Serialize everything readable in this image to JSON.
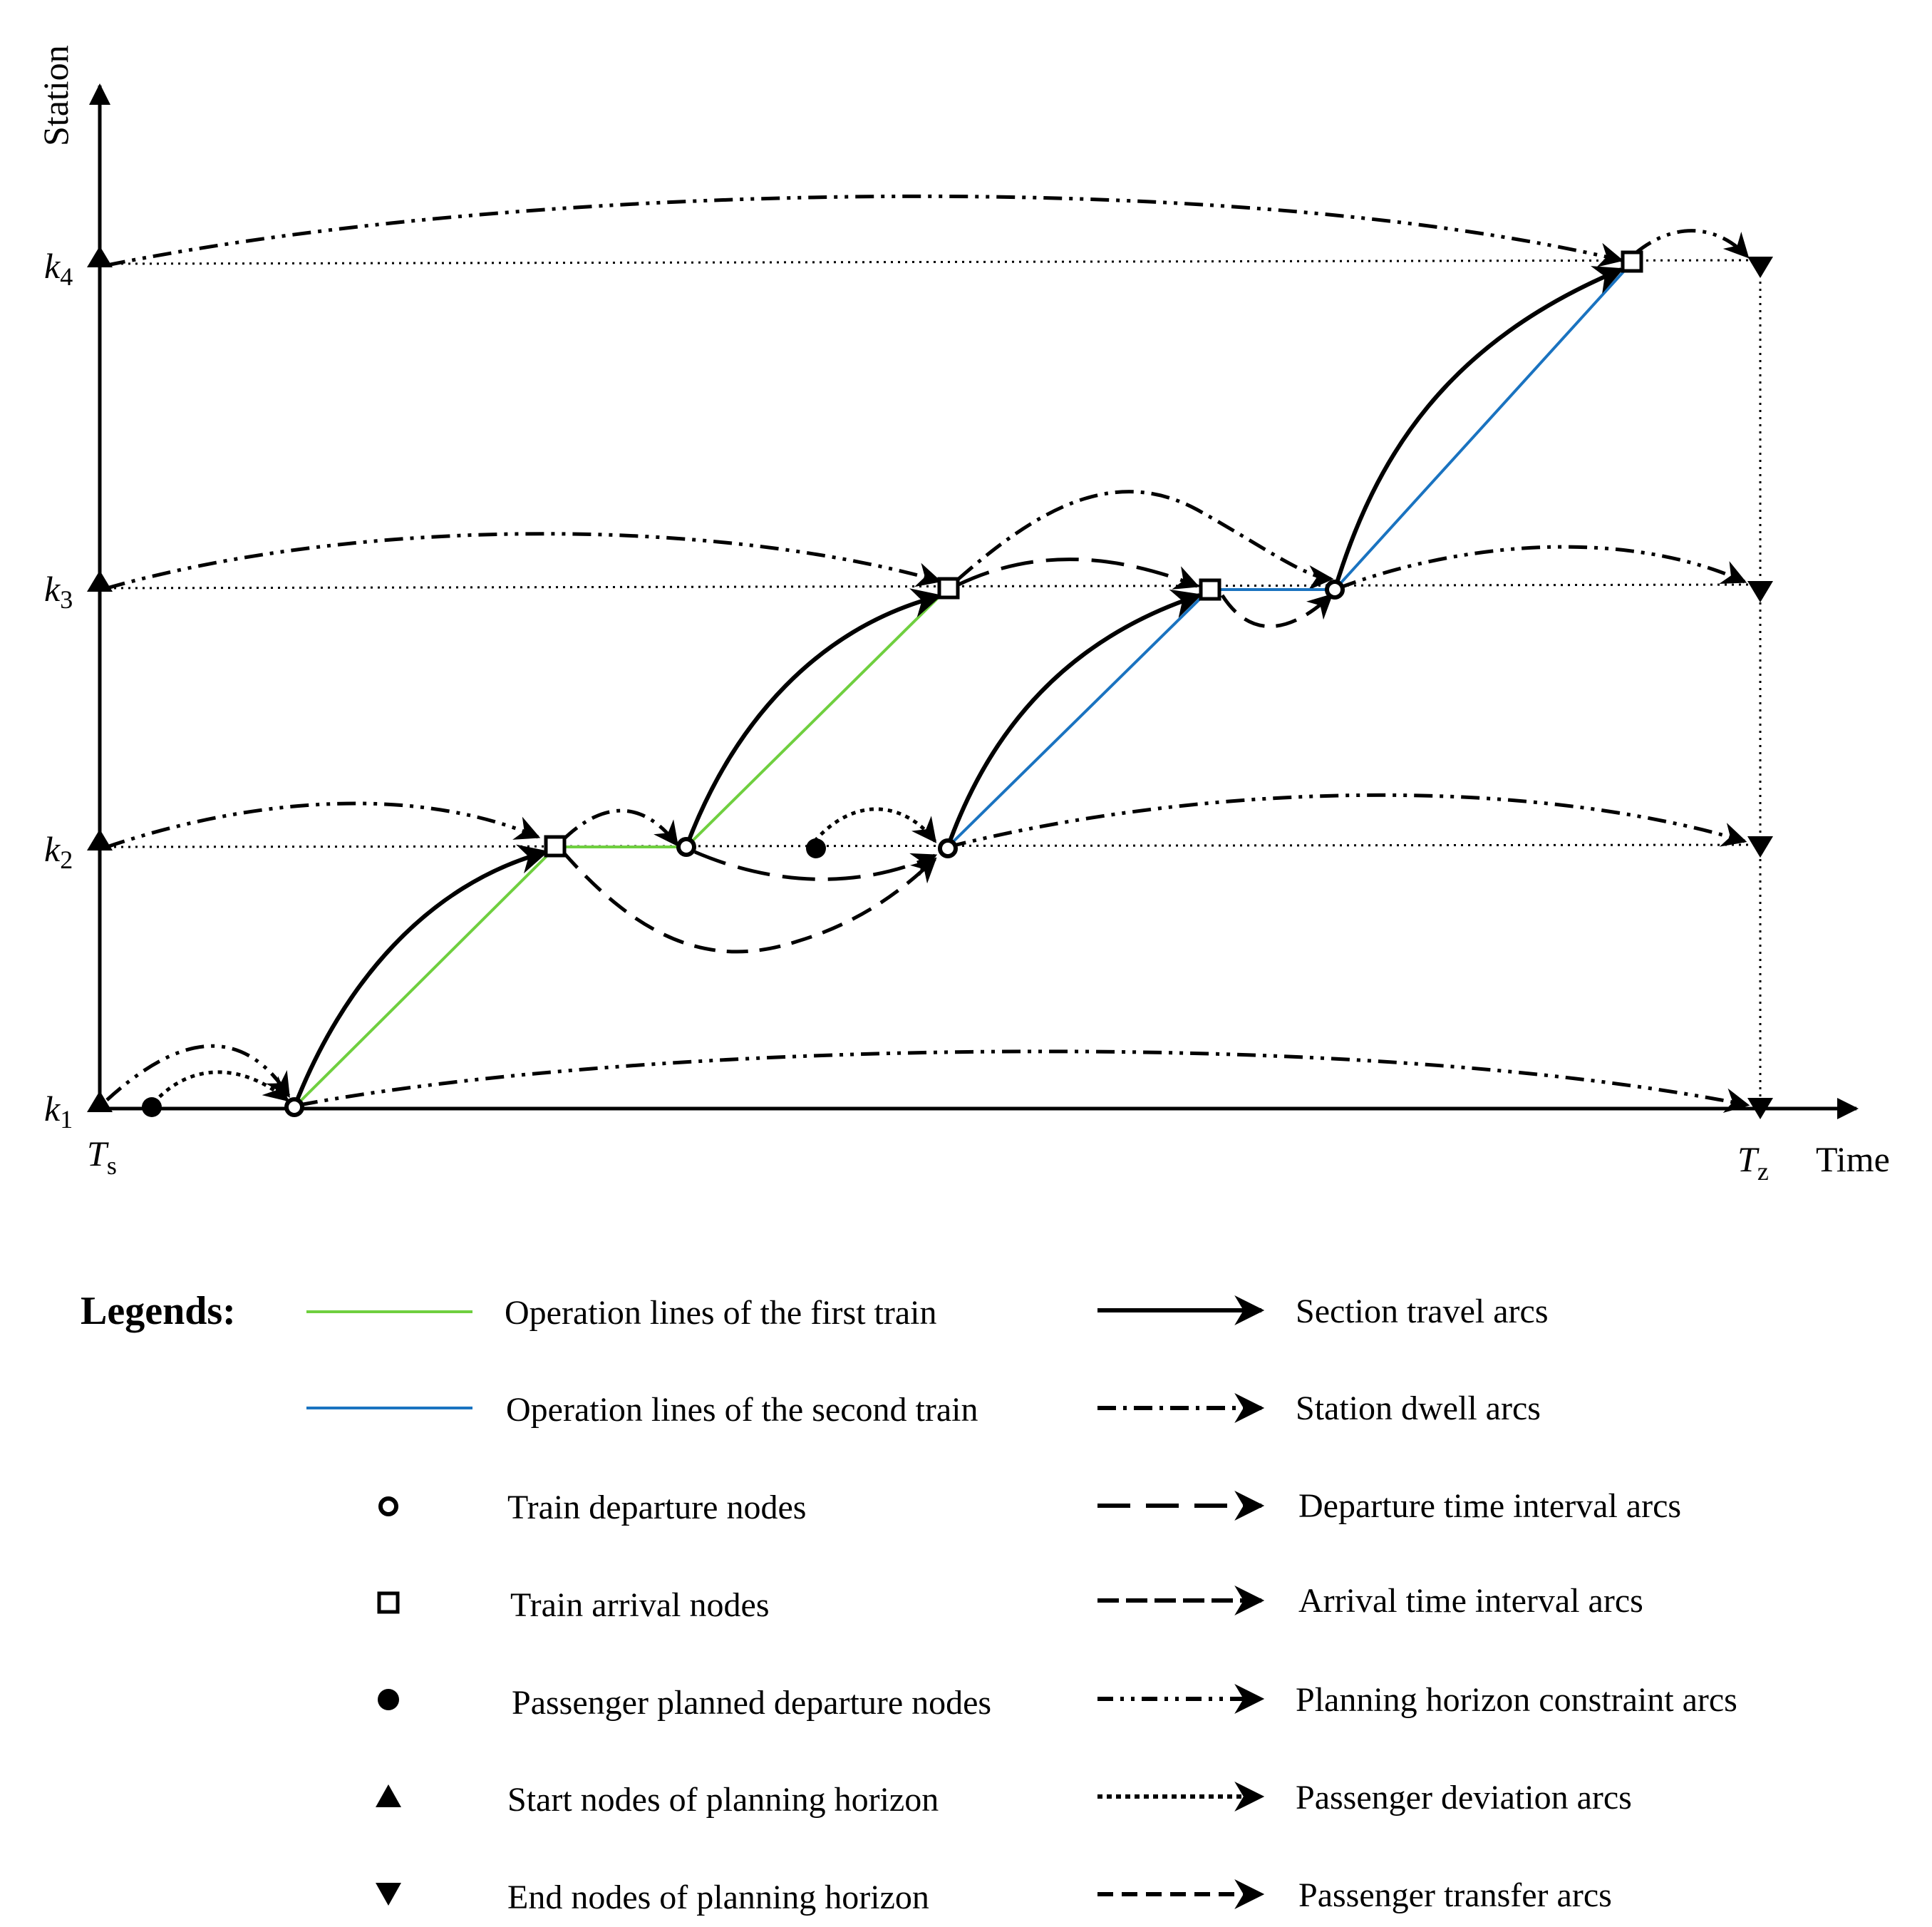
{
  "axes": {
    "y_label": "Station",
    "x_label": "Time",
    "stations": [
      {
        "label": "k",
        "sub": "1"
      },
      {
        "label": "k",
        "sub": "2"
      },
      {
        "label": "k",
        "sub": "3"
      },
      {
        "label": "k",
        "sub": "4"
      }
    ],
    "t_start": {
      "label": "T",
      "sub": "s"
    },
    "t_end": {
      "label": "T",
      "sub": "z"
    }
  },
  "colors": {
    "first_train": "#6fcf3f",
    "second_train": "#1a73c0",
    "ink": "#000000"
  },
  "legend": {
    "title": "Legends:",
    "left": [
      {
        "icon": "green-line-icon",
        "label": "Operation lines of the first train"
      },
      {
        "icon": "blue-line-icon",
        "label": "Operation lines of the second train"
      },
      {
        "icon": "open-circle-icon",
        "label": "Train departure nodes"
      },
      {
        "icon": "open-square-icon",
        "label": "Train arrival nodes"
      },
      {
        "icon": "filled-circle-icon",
        "label": "Passenger planned departure nodes"
      },
      {
        "icon": "up-triangle-icon",
        "label": "Start nodes of planning horizon"
      },
      {
        "icon": "down-triangle-icon",
        "label": "End nodes of planning horizon"
      }
    ],
    "right": [
      {
        "icon": "solid-arrow-icon",
        "label": "Section travel arcs"
      },
      {
        "icon": "dash-dot-arrow-icon",
        "label": "Station dwell arcs"
      },
      {
        "icon": "long-dash-arrow-icon",
        "label": "Departure time interval arcs"
      },
      {
        "icon": "dash-arrow-icon",
        "label": "Arrival time interval arcs"
      },
      {
        "icon": "dash-dot-dot-arrow-icon",
        "label": "Planning horizon constraint arcs"
      },
      {
        "icon": "dotted-arrow-icon",
        "label": "Passenger deviation arcs"
      },
      {
        "icon": "short-dash-arrow-icon",
        "label": "Passenger transfer arcs"
      }
    ]
  }
}
